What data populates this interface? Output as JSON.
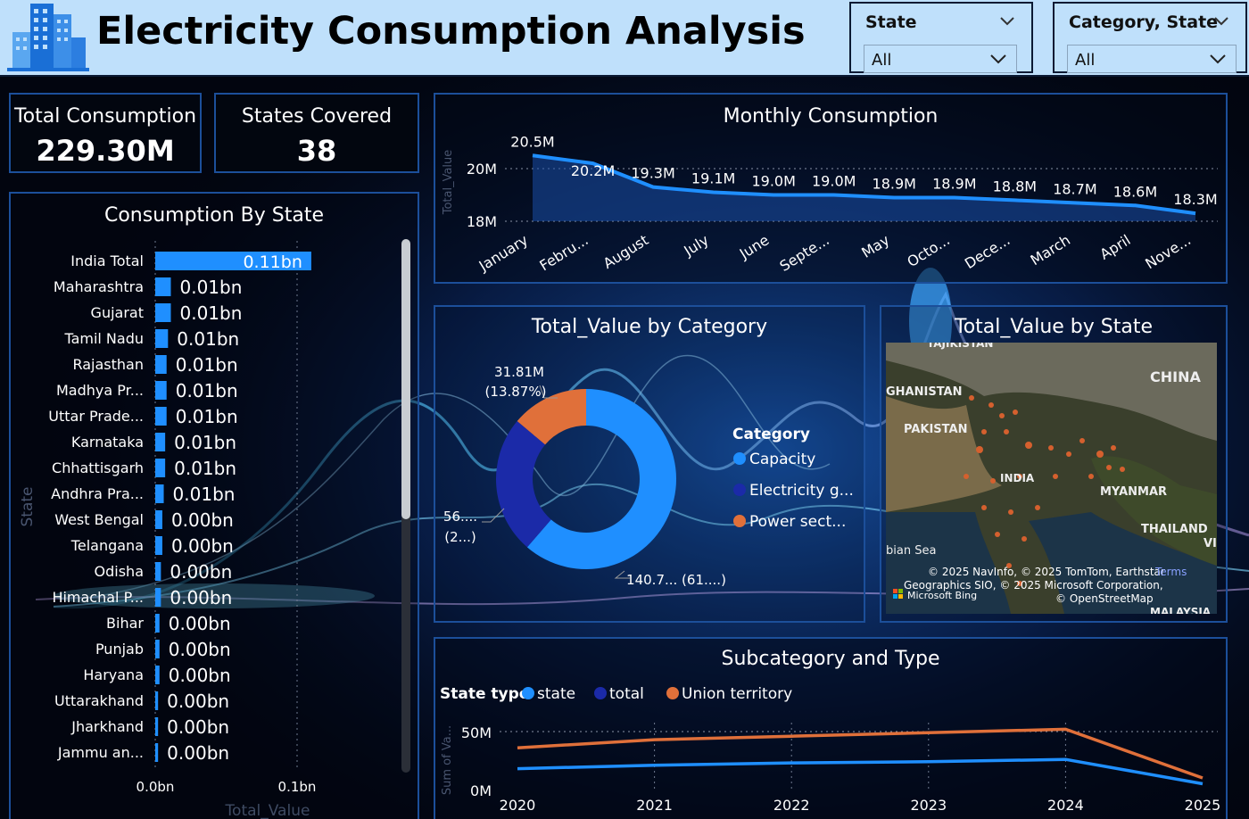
{
  "header": {
    "title": "Electricity Consumption Analysis",
    "slicers": [
      {
        "label": "State",
        "value": "All"
      },
      {
        "label": "Category, State",
        "value": "All"
      }
    ]
  },
  "kpis": [
    {
      "label": "Total Consumption",
      "value": "229.30M"
    },
    {
      "label": "States Covered",
      "value": "38"
    }
  ],
  "colors": {
    "accent_blue": "#1f8fff",
    "navy": "#1b2aa8",
    "orange": "#e0703a",
    "panel_border": "#1c4f9a"
  },
  "consumption_by_state": {
    "title": "Consumption By State",
    "y_axis_label": "State",
    "x_axis_label": "Total_Value",
    "x_ticks": [
      "0.0bn",
      "0.1bn"
    ]
  },
  "monthly_consumption": {
    "title": "Monthly Consumption",
    "y_axis_label": "Total_Value",
    "y_ticks": [
      "20M",
      "18M"
    ]
  },
  "value_by_category": {
    "title": "Total_Value by Category",
    "legend_title": "Category",
    "labels": [
      {
        "text": "31.81M"
      },
      {
        "text": "(13.87%)"
      },
      {
        "text": "56...."
      },
      {
        "text": "(2...)"
      },
      {
        "text": "140.7... (61....)"
      }
    ]
  },
  "value_by_state_map": {
    "title": "Total_Value by State",
    "map_labels": [
      "TAJIKISTAN",
      "CHINA",
      "GHANISTAN",
      "PAKISTAN",
      "INDIA",
      "MYANMAR",
      "THAILAND",
      "VI",
      "bian Sea",
      "MALAYSIA"
    ],
    "attribution_line1": "© 2025 NavInfo, © 2025 TomTom, Earthstar",
    "attribution_line2": "Geographics SIO, © 2025 Microsoft Corporation,",
    "attribution_line3": "© OpenStreetMap",
    "bing_label": "Microsoft Bing",
    "terms_label": "Terms"
  },
  "subcategory_type": {
    "title": "Subcategory and Type",
    "legend_title": "State type",
    "y_axis_label": "Sum of Va...",
    "y_ticks": [
      "50M",
      "0M"
    ]
  },
  "chart_data": [
    {
      "type": "bar",
      "orientation": "horizontal",
      "title": "Consumption By State",
      "xlabel": "Total_Value",
      "ylabel": "State",
      "categories": [
        "India Total",
        "Maharashtra",
        "Gujarat",
        "Tamil Nadu",
        "Rajasthan",
        "Madhya Pr...",
        "Uttar Prade...",
        "Karnataka",
        "Chhattisgarh",
        "Andhra Pra...",
        "West Bengal",
        "Telangana",
        "Odisha",
        "Himachal P...",
        "Bihar",
        "Punjab",
        "Haryana",
        "Uttarakhand",
        "Jharkhand",
        "Jammu an..."
      ],
      "values": [
        0.11,
        0.011,
        0.011,
        0.009,
        0.008,
        0.008,
        0.008,
        0.007,
        0.007,
        0.006,
        0.005,
        0.005,
        0.004,
        0.004,
        0.003,
        0.003,
        0.003,
        0.002,
        0.002,
        0.002
      ],
      "data_labels": [
        "0.11bn",
        "0.01bn",
        "0.01bn",
        "0.01bn",
        "0.01bn",
        "0.01bn",
        "0.01bn",
        "0.01bn",
        "0.01bn",
        "0.01bn",
        "0.00bn",
        "0.00bn",
        "0.00bn",
        "0.00bn",
        "0.00bn",
        "0.00bn",
        "0.00bn",
        "0.00bn",
        "0.00bn",
        "0.00bn"
      ],
      "xlim": [
        0,
        0.17
      ]
    },
    {
      "type": "area",
      "title": "Monthly Consumption",
      "ylabel": "Total_Value",
      "categories": [
        "January",
        "Febru...",
        "August",
        "July",
        "June",
        "Septe...",
        "May",
        "Octo...",
        "Dece...",
        "March",
        "April",
        "Nove..."
      ],
      "values": [
        20.5,
        20.2,
        19.3,
        19.1,
        19.0,
        19.0,
        18.9,
        18.9,
        18.8,
        18.7,
        18.6,
        18.3
      ],
      "data_labels": [
        "20.5M",
        "20.2M",
        "19.3M",
        "19.1M",
        "19.0M",
        "19.0M",
        "18.9M",
        "18.9M",
        "18.8M",
        "18.7M",
        "18.6M",
        "18.3M"
      ],
      "ylim": [
        17.7,
        21
      ]
    },
    {
      "type": "pie",
      "donut": true,
      "title": "Total_Value by Category",
      "legend_title": "Category",
      "categories": [
        "Capacity",
        "Electricity g...",
        "Power sect..."
      ],
      "values": [
        140.7,
        56.8,
        31.81
      ],
      "colors": [
        "#1f8fff",
        "#1b2aa8",
        "#e0703a"
      ]
    },
    {
      "type": "line",
      "title": "Subcategory and Type",
      "ylabel": "Sum of Va...",
      "legend_title": "State type",
      "x": [
        "2020",
        "2021",
        "2022",
        "2023",
        "2024",
        "2025"
      ],
      "series": [
        {
          "name": "state",
          "color": "#1f8fff",
          "values": [
            18,
            21,
            23,
            24,
            26,
            5
          ]
        },
        {
          "name": "total",
          "color": "#1b2aa8",
          "values": [
            null,
            null,
            null,
            null,
            null,
            null
          ]
        },
        {
          "name": "Union territory",
          "color": "#e0703a",
          "values": [
            36,
            43,
            46,
            49,
            52,
            10
          ]
        }
      ],
      "ylim": [
        0,
        62
      ]
    }
  ]
}
